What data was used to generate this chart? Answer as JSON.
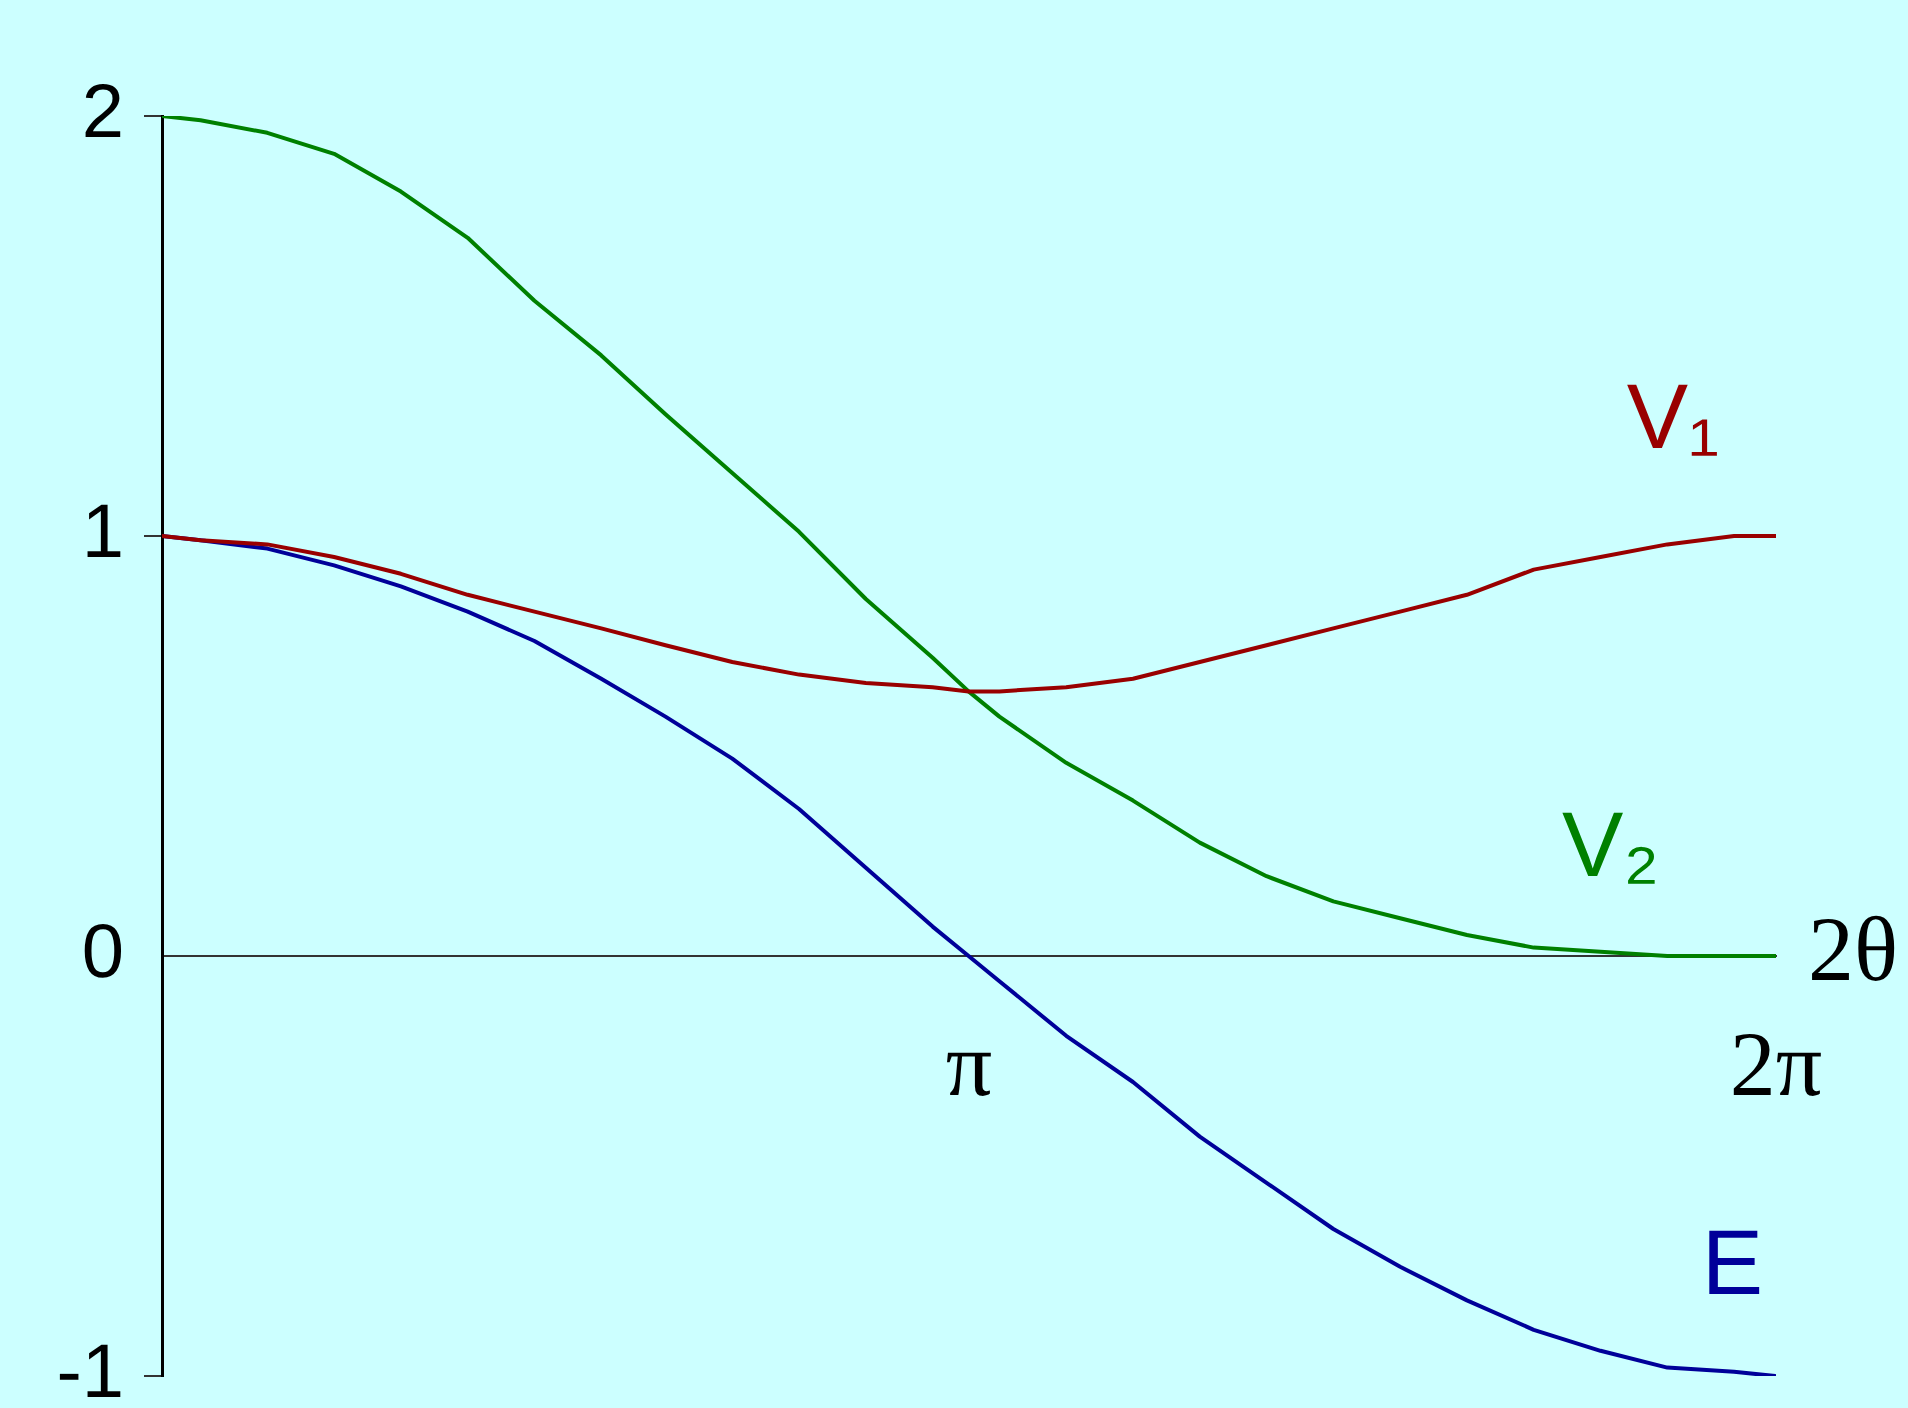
{
  "chart_data": {
    "type": "line",
    "xlabel": "2θ",
    "x": [
      0,
      0.15,
      0.41,
      0.67,
      0.93,
      1.19,
      1.45,
      1.71,
      1.96,
      2.22,
      2.48,
      2.74,
      3.0,
      3.14,
      3.26,
      3.52,
      3.78,
      4.04,
      4.3,
      4.56,
      4.82,
      5.08,
      5.34,
      5.6,
      5.86,
      6.12,
      6.28
    ],
    "series": [
      {
        "name": "V₁",
        "color": "#990000",
        "values": [
          1.0,
          0.99,
          0.98,
          0.95,
          0.91,
          0.86,
          0.82,
          0.78,
          0.74,
          0.7,
          0.67,
          0.65,
          0.64,
          0.63,
          0.63,
          0.64,
          0.66,
          0.7,
          0.74,
          0.78,
          0.82,
          0.86,
          0.92,
          0.95,
          0.98,
          1.0,
          1.0
        ]
      },
      {
        "name": "V₂",
        "color": "#008000",
        "values": [
          2.0,
          1.99,
          1.96,
          1.91,
          1.82,
          1.71,
          1.56,
          1.43,
          1.29,
          1.15,
          1.01,
          0.85,
          0.71,
          0.63,
          0.57,
          0.46,
          0.37,
          0.27,
          0.19,
          0.13,
          0.09,
          0.05,
          0.02,
          0.01,
          0.0,
          0.0,
          0.0
        ]
      },
      {
        "name": "E",
        "color": "#000099",
        "values": [
          1.0,
          0.99,
          0.97,
          0.93,
          0.88,
          0.82,
          0.75,
          0.66,
          0.57,
          0.47,
          0.35,
          0.21,
          0.07,
          0.0,
          -0.06,
          -0.19,
          -0.3,
          -0.43,
          -0.54,
          -0.65,
          -0.74,
          -0.82,
          -0.89,
          -0.94,
          -0.98,
          -0.99,
          -1.0
        ]
      }
    ],
    "xlim": [
      0,
      6.2832
    ],
    "xticks": [
      {
        "value": 3.1416,
        "label": "π"
      },
      {
        "value": 6.2832,
        "label": "2π"
      }
    ],
    "ylim": [
      -1,
      2
    ],
    "yticks": [
      -1,
      0,
      1,
      2
    ]
  }
}
